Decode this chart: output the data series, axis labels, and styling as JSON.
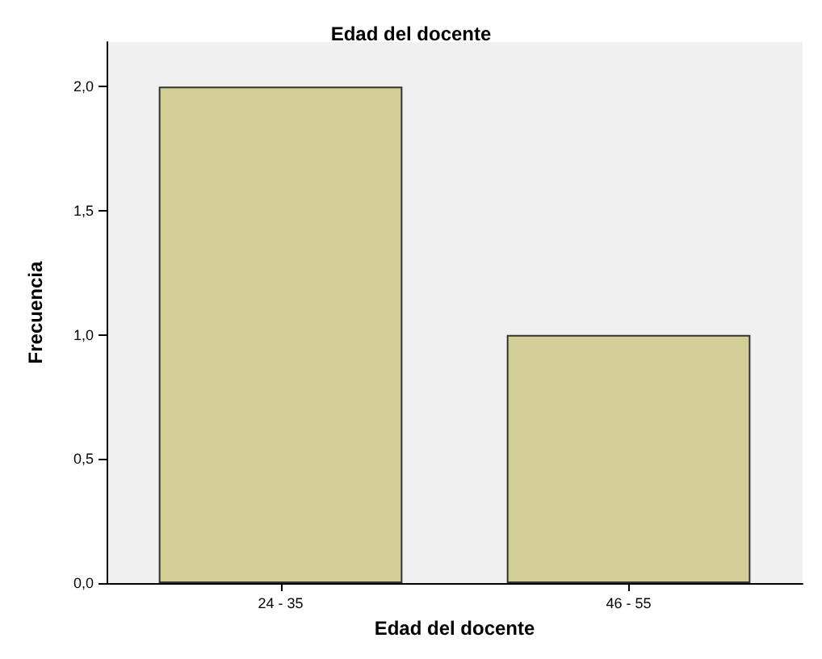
{
  "chart_data": {
    "type": "bar",
    "title": "Edad del docente",
    "xlabel": "Edad del docente",
    "ylabel": "Frecuencia",
    "categories": [
      "24 - 35",
      "46 - 55"
    ],
    "values": [
      2,
      1
    ],
    "color": "#d3ce97",
    "ylim": [
      0,
      2.18
    ],
    "yticks": [
      {
        "value": 0,
        "label": "0,0"
      },
      {
        "value": 0.5,
        "label": "0,5"
      },
      {
        "value": 1,
        "label": "1,0"
      },
      {
        "value": 1.5,
        "label": "1,5"
      },
      {
        "value": 2,
        "label": "2,0"
      }
    ],
    "grid": false
  }
}
